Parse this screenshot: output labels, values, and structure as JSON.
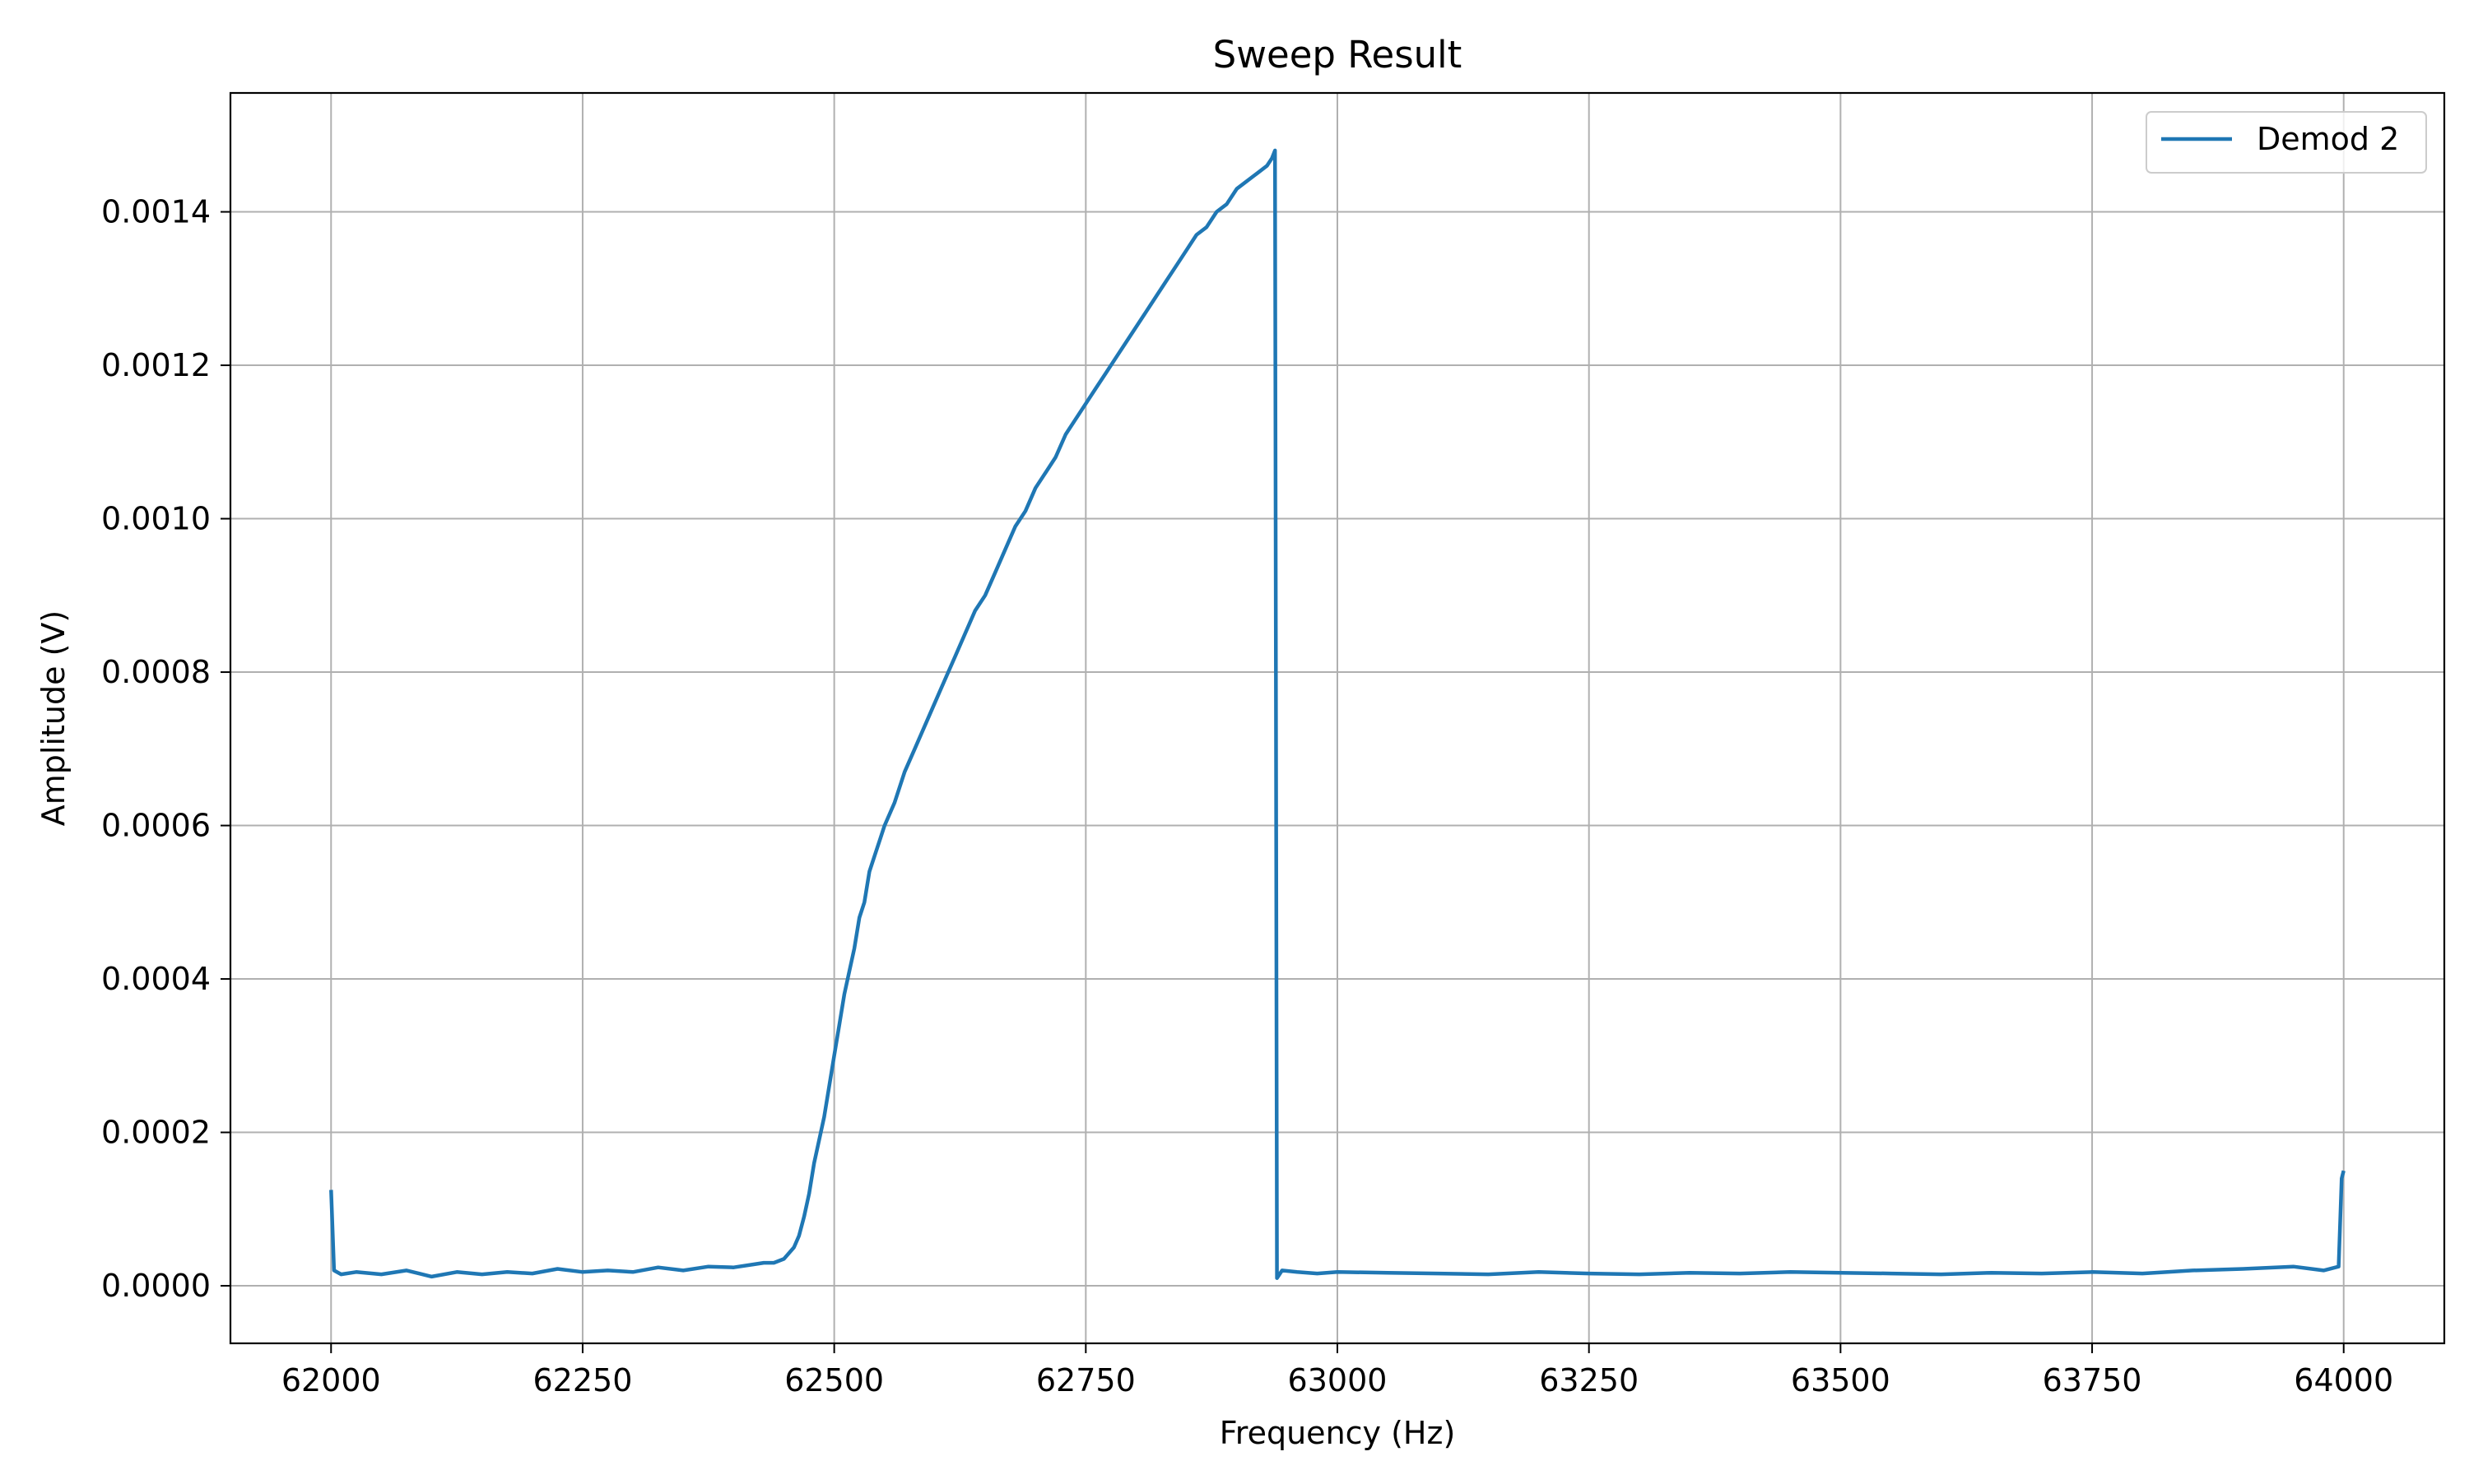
{
  "chart_data": {
    "type": "line",
    "title": "Sweep Result",
    "xlabel": "Frequency (Hz)",
    "ylabel": "Amplitude (V)",
    "xlim": [
      61900,
      64100
    ],
    "ylim": [
      -7.5e-05,
      0.001555
    ],
    "xticks": [
      62000,
      62250,
      62500,
      62750,
      63000,
      63250,
      63500,
      63750,
      64000
    ],
    "xtick_labels": [
      "62000",
      "62250",
      "62500",
      "62750",
      "63000",
      "63250",
      "63500",
      "63750",
      "64000"
    ],
    "yticks": [
      0.0,
      0.0002,
      0.0004,
      0.0006,
      0.0008,
      0.001,
      0.0012,
      0.0014
    ],
    "ytick_labels": [
      "0.0000",
      "0.0002",
      "0.0004",
      "0.0006",
      "0.0008",
      "0.0010",
      "0.0012",
      "0.0014"
    ],
    "grid": true,
    "legend_position": "top-right",
    "series": [
      {
        "name": "Demod 2",
        "color": "#1f77b4",
        "x": [
          62000,
          62003,
          62010,
          62025,
          62050,
          62075,
          62100,
          62125,
          62150,
          62175,
          62200,
          62225,
          62250,
          62275,
          62300,
          62325,
          62350,
          62375,
          62400,
          62420,
          62430,
          62440,
          62450,
          62460,
          62465,
          62470,
          62475,
          62480,
          62485,
          62490,
          62495,
          62500,
          62505,
          62510,
          62515,
          62520,
          62525,
          62530,
          62535,
          62540,
          62545,
          62550,
          62560,
          62570,
          62580,
          62590,
          62600,
          62610,
          62620,
          62630,
          62640,
          62650,
          62660,
          62670,
          62680,
          62690,
          62700,
          62710,
          62720,
          62730,
          62740,
          62750,
          62760,
          62770,
          62780,
          62790,
          62800,
          62810,
          62820,
          62830,
          62840,
          62850,
          62860,
          62870,
          62880,
          62890,
          62900,
          62910,
          62920,
          62930,
          62935,
          62938,
          62940,
          62945,
          62960,
          62980,
          63000,
          63050,
          63100,
          63150,
          63200,
          63250,
          63300,
          63350,
          63400,
          63450,
          63500,
          63550,
          63600,
          63650,
          63700,
          63750,
          63800,
          63850,
          63900,
          63950,
          63980,
          63995,
          63998,
          64000
        ],
        "y": [
          0.000125,
          2e-05,
          1.5e-05,
          1.8e-05,
          1.5e-05,
          2e-05,
          1.2e-05,
          1.8e-05,
          1.5e-05,
          1.8e-05,
          1.6e-05,
          2.2e-05,
          1.8e-05,
          2e-05,
          1.8e-05,
          2.4e-05,
          2e-05,
          2.5e-05,
          2.4e-05,
          2.8e-05,
          3e-05,
          3e-05,
          3.5e-05,
          5e-05,
          6.5e-05,
          9e-05,
          0.00012,
          0.00016,
          0.00019,
          0.00022,
          0.00026,
          0.0003,
          0.00034,
          0.00038,
          0.00041,
          0.00044,
          0.00048,
          0.0005,
          0.00054,
          0.00056,
          0.00058,
          0.0006,
          0.00063,
          0.00067,
          0.0007,
          0.00073,
          0.00076,
          0.00079,
          0.00082,
          0.00085,
          0.00088,
          0.0009,
          0.00093,
          0.00096,
          0.00099,
          0.00101,
          0.00104,
          0.00106,
          0.00108,
          0.00111,
          0.00113,
          0.00115,
          0.00117,
          0.00119,
          0.00121,
          0.00123,
          0.00125,
          0.00127,
          0.00129,
          0.00131,
          0.00133,
          0.00135,
          0.00137,
          0.00138,
          0.0014,
          0.00141,
          0.00143,
          0.00144,
          0.00145,
          0.00146,
          0.00147,
          0.00148,
          1e-05,
          2e-05,
          1.8e-05,
          1.6e-05,
          1.8e-05,
          1.7e-05,
          1.6e-05,
          1.5e-05,
          1.8e-05,
          1.6e-05,
          1.5e-05,
          1.7e-05,
          1.6e-05,
          1.8e-05,
          1.7e-05,
          1.6e-05,
          1.5e-05,
          1.7e-05,
          1.6e-05,
          1.8e-05,
          1.6e-05,
          2e-05,
          2.2e-05,
          2.5e-05,
          2e-05,
          2.5e-05,
          0.00014,
          0.00015
        ]
      }
    ]
  }
}
